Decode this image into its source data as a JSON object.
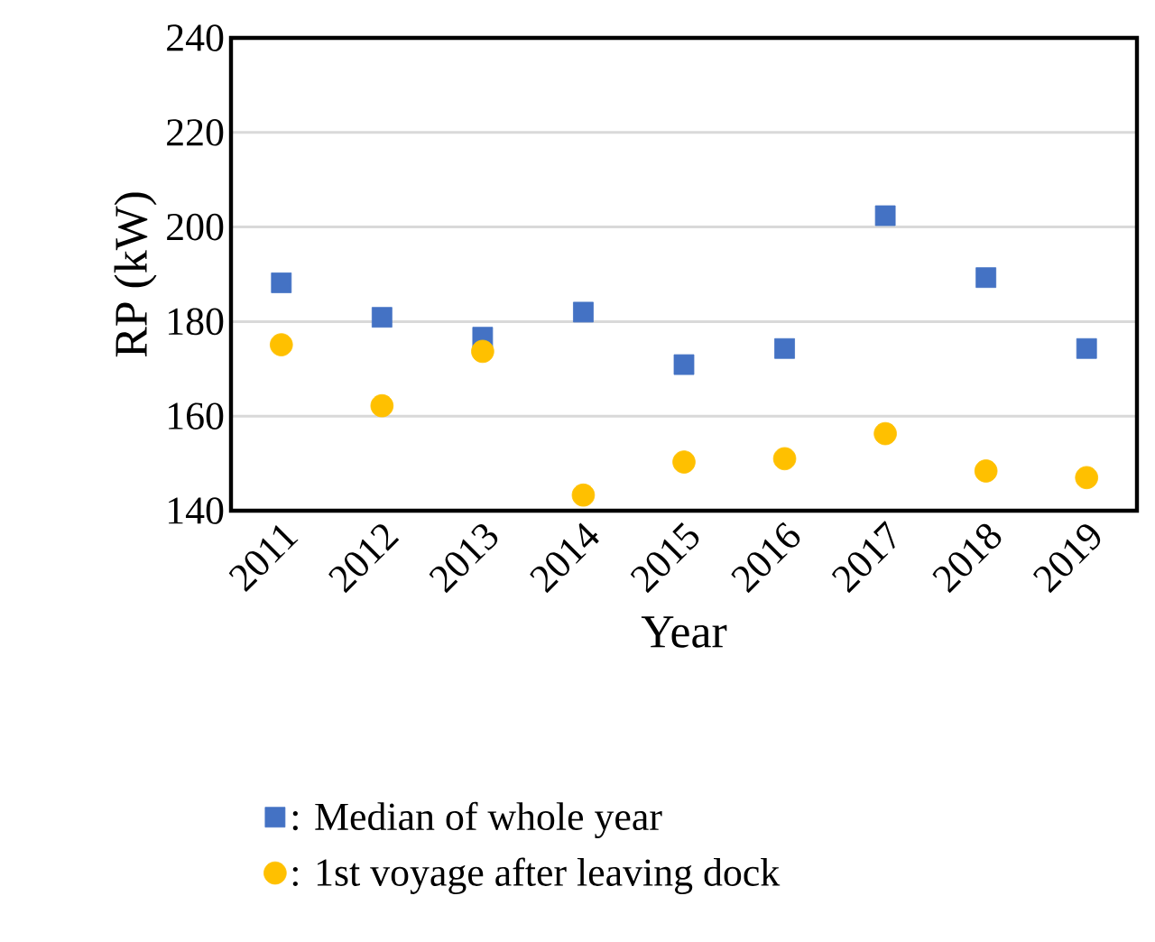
{
  "chart_data": {
    "type": "scatter",
    "xlabel": "Year",
    "ylabel": "RP (kW)",
    "categories": [
      "2011",
      "2012",
      "2013",
      "2014",
      "2015",
      "2016",
      "2017",
      "2018",
      "2019"
    ],
    "series": [
      {
        "name": ": Median of whole year",
        "color": "#4472c4",
        "marker": "square",
        "values": [
          188.2,
          180.9,
          176.7,
          182.0,
          170.9,
          174.3,
          202.4,
          189.3,
          174.3
        ]
      },
      {
        "name": ": 1st voyage after leaving dock",
        "color": "#ffc000",
        "marker": "circle",
        "values": [
          175.1,
          162.2,
          173.7,
          143.3,
          150.3,
          151.0,
          156.3,
          148.4,
          147.0
        ]
      }
    ],
    "ylim": [
      140,
      240
    ],
    "yticks": [
      140,
      160,
      180,
      200,
      220,
      240
    ],
    "grid": "y",
    "legend": "bottom"
  }
}
